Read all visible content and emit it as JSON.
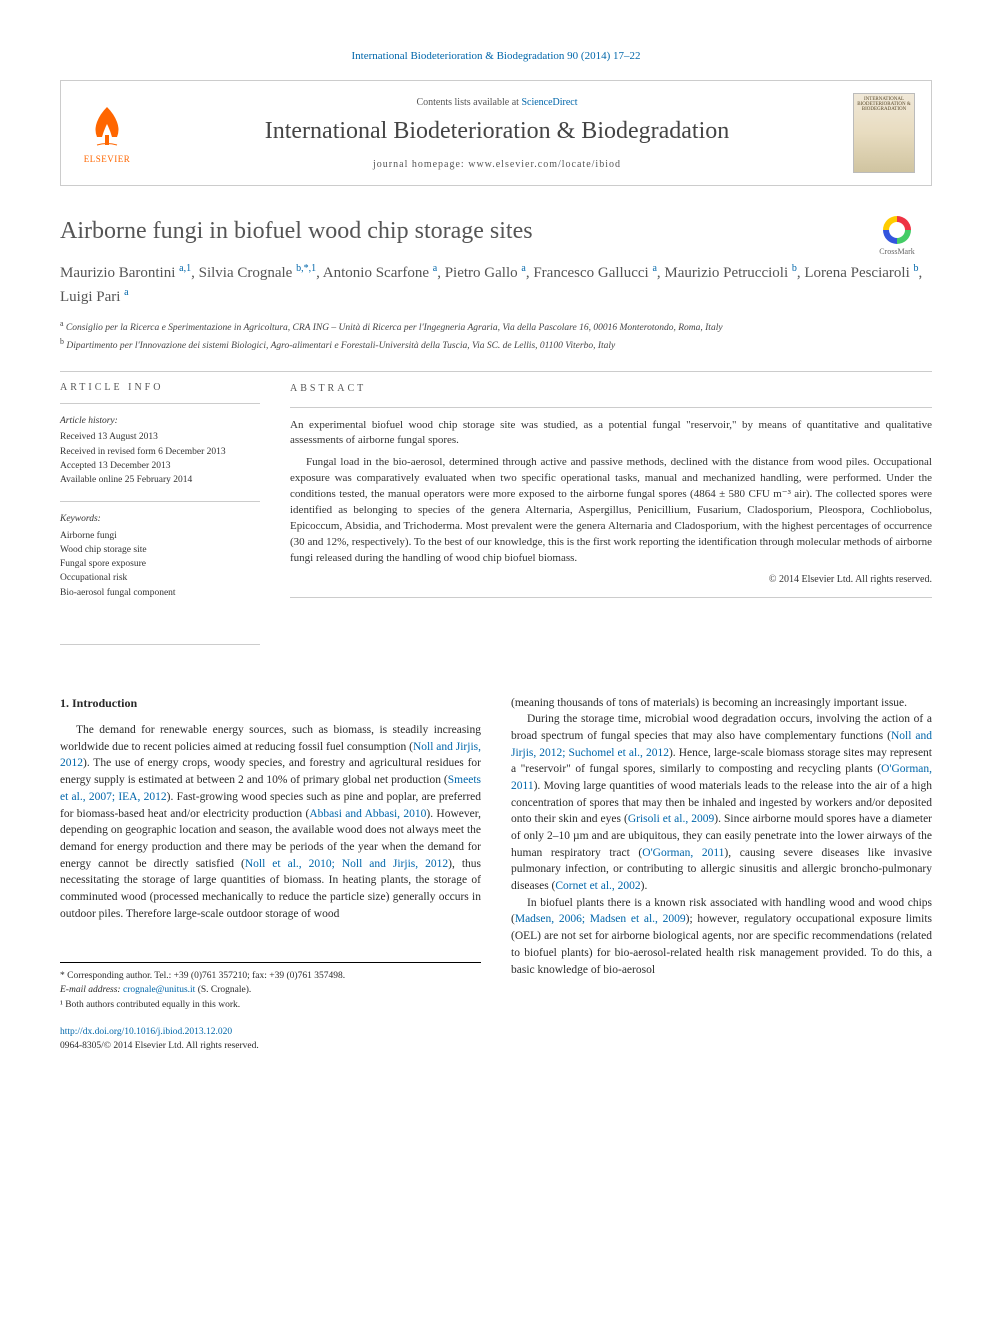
{
  "journal_ref": "International Biodeterioration & Biodegradation 90 (2014) 17–22",
  "header": {
    "contents_prefix": "Contents lists available at ",
    "contents_link": "ScienceDirect",
    "journal_name": "International Biodeterioration & Biodegradation",
    "homepage_prefix": "journal homepage: ",
    "homepage_url": "www.elsevier.com/locate/ibiod",
    "elsevier_label": "ELSEVIER",
    "cover_text": "INTERNATIONAL BIODETERIORATION & BIODEGRADATION"
  },
  "crossmark": "CrossMark",
  "title": "Airborne fungi in biofuel wood chip storage sites",
  "authors_html": "Maurizio Barontini <sup>a,1</sup>, Silvia Crognale <sup>b,*,1</sup>, Antonio Scarfone <sup>a</sup>, Pietro Gallo <sup>a</sup>, Francesco Gallucci <sup>a</sup>, Maurizio Petruccioli <sup>b</sup>, Lorena Pesciaroli <sup>b</sup>, Luigi Pari <sup>a</sup>",
  "affiliations": {
    "a": "Consiglio per la Ricerca e Sperimentazione in Agricoltura, CRA ING – Unità di Ricerca per l'Ingegneria Agraria, Via della Pascolare 16, 00016 Monterotondo, Roma, Italy",
    "b": "Dipartimento per l'Innovazione dei sistemi Biologici, Agro-alimentari e Forestali-Università della Tuscia, Via SC. de Lellis, 01100 Viterbo, Italy"
  },
  "article_info": {
    "heading": "ARTICLE INFO",
    "history_label": "Article history:",
    "received": "Received 13 August 2013",
    "revised": "Received in revised form 6 December 2013",
    "accepted": "Accepted 13 December 2013",
    "online": "Available online 25 February 2014",
    "keywords_label": "Keywords:",
    "keywords": [
      "Airborne fungi",
      "Wood chip storage site",
      "Fungal spore exposure",
      "Occupational risk",
      "Bio-aerosol fungal component"
    ]
  },
  "abstract": {
    "heading": "ABSTRACT",
    "p1": "An experimental biofuel wood chip storage site was studied, as a potential fungal \"reservoir,\" by means of quantitative and qualitative assessments of airborne fungal spores.",
    "p2": "Fungal load in the bio-aerosol, determined through active and passive methods, declined with the distance from wood piles. Occupational exposure was comparatively evaluated when two specific operational tasks, manual and mechanized handling, were performed. Under the conditions tested, the manual operators were more exposed to the airborne fungal spores (4864 ± 580 CFU m⁻³ air). The collected spores were identified as belonging to species of the genera Alternaria, Aspergillus, Penicillium, Fusarium, Cladosporium, Pleospora, Cochliobolus, Epicoccum, Absidia, and Trichoderma. Most prevalent were the genera Alternaria and Cladosporium, with the highest percentages of occurrence (30 and 12%, respectively). To the best of our knowledge, this is the first work reporting the identification through molecular methods of airborne fungi released during the handling of wood chip biofuel biomass.",
    "copyright": "© 2014 Elsevier Ltd. All rights reserved."
  },
  "body": {
    "section1_heading": "1. Introduction",
    "col1_p1a": "The demand for renewable energy sources, such as biomass, is steadily increasing worldwide due to recent policies aimed at reducing fossil fuel consumption (",
    "col1_c1": "Noll and Jirjis, 2012",
    "col1_p1b": "). The use of energy crops, woody species, and forestry and agricultural residues for energy supply is estimated at between 2 and 10% of primary global net production (",
    "col1_c2": "Smeets et al., 2007; IEA, 2012",
    "col1_p1c": "). Fast-growing wood species such as pine and poplar, are preferred for biomass-based heat and/or electricity production (",
    "col1_c3": "Abbasi and Abbasi, 2010",
    "col1_p1d": "). However, depending on geographic location and season, the available wood does not always meet the demand for energy production and there may be periods of the year when the demand for energy cannot be directly satisfied (",
    "col1_c4": "Noll et al., 2010; Noll and Jirjis, 2012",
    "col1_p1e": "), thus necessitating the storage of large quantities of biomass. In heating plants, the storage of comminuted wood (processed mechanically to reduce the particle size) generally occurs in outdoor piles. Therefore large-scale outdoor storage of wood",
    "col2_p1": "(meaning thousands of tons of materials) is becoming an increasingly important issue.",
    "col2_p2a": "During the storage time, microbial wood degradation occurs, involving the action of a broad spectrum of fungal species that may also have complementary functions (",
    "col2_c1": "Noll and Jirjis, 2012; Suchomel et al., 2012",
    "col2_p2b": "). Hence, large-scale biomass storage sites may represent a \"reservoir\" of fungal spores, similarly to composting and recycling plants (",
    "col2_c2": "O'Gorman, 2011",
    "col2_p2c": "). Moving large quantities of wood materials leads to the release into the air of a high concentration of spores that may then be inhaled and ingested by workers and/or deposited onto their skin and eyes (",
    "col2_c3": "Grisoli et al., 2009",
    "col2_p2d": "). Since airborne mould spores have a diameter of only 2–10 µm and are ubiquitous, they can easily penetrate into the lower airways of the human respiratory tract (",
    "col2_c4": "O'Gorman, 2011",
    "col2_p2e": "), causing severe diseases like invasive pulmonary infection, or contributing to allergic sinusitis and allergic broncho-pulmonary diseases (",
    "col2_c5": "Cornet et al., 2002",
    "col2_p2f": ").",
    "col2_p3a": "In biofuel plants there is a known risk associated with handling wood and wood chips (",
    "col2_c6": "Madsen, 2006; Madsen et al., 2009",
    "col2_p3b": "); however, regulatory occupational exposure limits (OEL) are not set for airborne biological agents, nor are specific recommendations (related to biofuel plants) for bio-aerosol-related health risk management provided. To do this, a basic knowledge of bio-aerosol"
  },
  "footnotes": {
    "corr": "* Corresponding author. Tel.: +39 (0)761 357210; fax: +39 (0)761 357498.",
    "email_label": "E-mail address:",
    "email": "crognale@unitus.it",
    "email_who": "(S. Crognale).",
    "note1": "¹ Both authors contributed equally in this work."
  },
  "footer": {
    "doi": "http://dx.doi.org/10.1016/j.ibiod.2013.12.020",
    "issn": "0964-8305/© 2014 Elsevier Ltd. All rights reserved."
  },
  "colors": {
    "link": "#0066aa",
    "elsevier_orange": "#ff6600",
    "text": "#333333",
    "heading_gray": "#555555",
    "border": "#cccccc"
  }
}
